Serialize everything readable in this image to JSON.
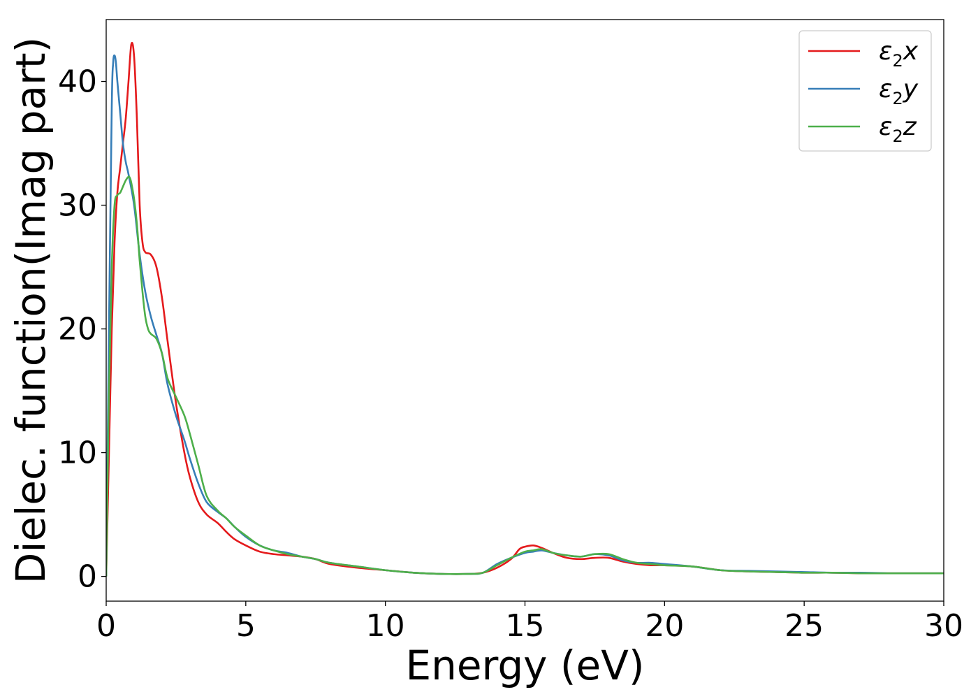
{
  "chart_data": {
    "type": "line",
    "title": "",
    "xlabel": "Energy (eV)",
    "ylabel": "Dielec. function(Imag part)",
    "xlim": [
      0,
      30
    ],
    "ylim": [
      -2,
      45
    ],
    "xticks": [
      0,
      5,
      10,
      15,
      20,
      25,
      30
    ],
    "yticks": [
      0,
      10,
      20,
      30,
      40
    ],
    "xtick_labels": [
      "0",
      "5",
      "10",
      "15",
      "20",
      "25",
      "30"
    ],
    "ytick_labels": [
      "0",
      "10",
      "20",
      "30",
      "40"
    ],
    "grid": false,
    "legend_position": "top-right",
    "series": [
      {
        "name": "ε2x",
        "name_base": "ε",
        "name_sub": "2",
        "name_var": "x",
        "color": "#e41a1c",
        "x": [
          0,
          0.1,
          0.2,
          0.3,
          0.4,
          0.5,
          0.6,
          0.7,
          0.8,
          0.9,
          1.0,
          1.1,
          1.2,
          1.3,
          1.4,
          1.6,
          1.8,
          2.0,
          2.2,
          2.5,
          2.8,
          3.0,
          3.3,
          3.6,
          4.0,
          4.3,
          4.6,
          5.0,
          5.5,
          6.0,
          6.5,
          7.0,
          7.5,
          8.0,
          9.0,
          10.0,
          11.0,
          12.0,
          13.0,
          13.5,
          14.0,
          14.5,
          14.8,
          15.0,
          15.3,
          15.6,
          16.0,
          16.5,
          17.0,
          17.5,
          18.0,
          18.5,
          19.0,
          19.5,
          20.0,
          21.0,
          22.0,
          23.0,
          24.0,
          25.0,
          26.0,
          27.0,
          28.0,
          29.0,
          30.0
        ],
        "y": [
          0,
          10,
          20,
          27,
          31,
          33,
          35,
          37,
          40,
          43,
          42,
          37,
          30,
          27,
          26.2,
          26.0,
          25,
          22.5,
          19,
          14,
          10,
          8,
          6,
          5,
          4.3,
          3.6,
          3.0,
          2.5,
          2.0,
          1.8,
          1.7,
          1.6,
          1.4,
          1.0,
          0.7,
          0.5,
          0.3,
          0.2,
          0.2,
          0.3,
          0.7,
          1.4,
          2.2,
          2.4,
          2.5,
          2.3,
          1.9,
          1.5,
          1.4,
          1.5,
          1.5,
          1.2,
          1.0,
          0.9,
          0.9,
          0.8,
          0.5,
          0.4,
          0.35,
          0.3,
          0.3,
          0.25,
          0.25,
          0.25,
          0.25
        ]
      },
      {
        "name": "ε2y",
        "name_base": "ε",
        "name_sub": "2",
        "name_var": "y",
        "color": "#377eb8",
        "x": [
          0,
          0.1,
          0.2,
          0.25,
          0.3,
          0.35,
          0.4,
          0.5,
          0.6,
          0.7,
          0.8,
          1.0,
          1.2,
          1.4,
          1.6,
          1.8,
          2.0,
          2.2,
          2.5,
          2.8,
          3.0,
          3.3,
          3.6,
          4.0,
          4.3,
          4.6,
          5.0,
          5.5,
          6.0,
          6.5,
          7.0,
          7.5,
          8.0,
          9.0,
          10.0,
          11.0,
          12.0,
          13.0,
          13.5,
          14.0,
          14.5,
          15.0,
          15.3,
          15.6,
          16.0,
          16.5,
          17.0,
          17.5,
          18.0,
          18.5,
          19.0,
          19.5,
          20.0,
          21.0,
          22.0,
          23.0,
          24.0,
          25.0,
          26.0,
          27.0,
          28.0,
          29.0,
          30.0
        ],
        "y": [
          0,
          20,
          38,
          41.5,
          42.1,
          41.5,
          40,
          37.5,
          35,
          33.5,
          32.5,
          30,
          26,
          23,
          21,
          19.5,
          18,
          15.5,
          13,
          11,
          9.5,
          7.5,
          6,
          5.2,
          4.7,
          4.0,
          3.2,
          2.5,
          2.1,
          1.9,
          1.6,
          1.4,
          1.1,
          0.8,
          0.5,
          0.3,
          0.2,
          0.2,
          0.3,
          1.0,
          1.5,
          1.9,
          2.0,
          2.1,
          1.9,
          1.7,
          1.6,
          1.8,
          1.7,
          1.3,
          1.1,
          1.1,
          1.0,
          0.8,
          0.5,
          0.45,
          0.4,
          0.35,
          0.3,
          0.3,
          0.25,
          0.25,
          0.25
        ]
      },
      {
        "name": "ε2z",
        "name_base": "ε",
        "name_sub": "2",
        "name_var": "z",
        "color": "#4daf4a",
        "x": [
          0,
          0.1,
          0.2,
          0.3,
          0.4,
          0.5,
          0.6,
          0.7,
          0.8,
          0.85,
          0.9,
          1.0,
          1.1,
          1.2,
          1.3,
          1.4,
          1.5,
          1.6,
          1.8,
          2.0,
          2.2,
          2.5,
          2.8,
          3.0,
          3.3,
          3.6,
          4.0,
          4.3,
          4.6,
          5.0,
          5.5,
          6.0,
          6.5,
          7.0,
          7.5,
          8.0,
          9.0,
          10.0,
          11.0,
          12.0,
          13.0,
          13.5,
          14.0,
          14.5,
          15.0,
          15.3,
          15.6,
          16.0,
          16.5,
          17.0,
          17.5,
          18.0,
          18.5,
          19.0,
          19.5,
          20.0,
          21.0,
          22.0,
          23.0,
          24.0,
          25.0,
          26.0,
          27.0,
          28.0,
          29.0,
          30.0
        ],
        "y": [
          0,
          15,
          25,
          30,
          30.8,
          31,
          31.5,
          32,
          32.3,
          32.2,
          31.8,
          30.5,
          28.5,
          25.5,
          23,
          21,
          20,
          19.6,
          19.2,
          18,
          16,
          14.5,
          13,
          11.5,
          9,
          6.5,
          5.3,
          4.7,
          4.0,
          3.3,
          2.5,
          2.1,
          1.8,
          1.6,
          1.4,
          1.1,
          0.8,
          0.5,
          0.3,
          0.2,
          0.2,
          0.3,
          0.9,
          1.5,
          2.0,
          2.1,
          2.2,
          1.9,
          1.7,
          1.6,
          1.8,
          1.8,
          1.4,
          1.1,
          1.0,
          0.9,
          0.8,
          0.5,
          0.4,
          0.35,
          0.3,
          0.3,
          0.25,
          0.25,
          0.25,
          0.25
        ]
      }
    ]
  }
}
